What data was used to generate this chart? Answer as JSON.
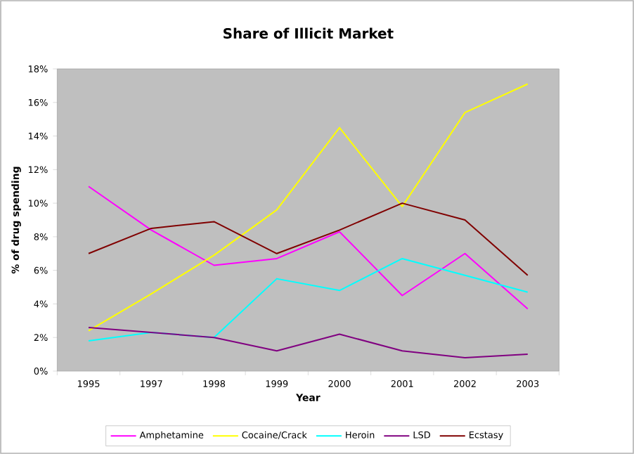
{
  "chart_data": {
    "type": "line",
    "title": "Share of Illicit Market",
    "xlabel": "Year",
    "ylabel": "% of drug spending",
    "categories": [
      "1995",
      "1997",
      "1998",
      "1999",
      "2000",
      "2001",
      "2002",
      "2003"
    ],
    "series": [
      {
        "name": "Amphetamine",
        "color": "#ff00ff",
        "values": [
          11.0,
          8.4,
          6.3,
          6.7,
          8.3,
          4.5,
          7.0,
          3.7
        ]
      },
      {
        "name": "Cocaine/Crack",
        "color": "#ffff00",
        "values": [
          2.4,
          4.6,
          6.9,
          9.6,
          14.5,
          9.8,
          15.4,
          17.1
        ]
      },
      {
        "name": "Heroin",
        "color": "#00ffff",
        "values": [
          1.8,
          2.3,
          2.0,
          5.5,
          4.8,
          6.7,
          5.7,
          4.7
        ]
      },
      {
        "name": "LSD",
        "color": "#800080",
        "values": [
          2.6,
          2.3,
          2.0,
          1.2,
          2.2,
          1.2,
          0.8,
          1.0
        ]
      },
      {
        "name": "Ecstasy",
        "color": "#800000",
        "values": [
          7.0,
          8.5,
          8.9,
          7.0,
          8.4,
          10.0,
          9.0,
          5.7
        ]
      }
    ],
    "ylim": [
      0,
      18
    ],
    "yticks": [
      {
        "value": 0,
        "label": "0%"
      },
      {
        "value": 2,
        "label": "2%"
      },
      {
        "value": 4,
        "label": "4%"
      },
      {
        "value": 6,
        "label": "6%"
      },
      {
        "value": 8,
        "label": "8%"
      },
      {
        "value": 10,
        "label": "10%"
      },
      {
        "value": 12,
        "label": "12%"
      },
      {
        "value": 14,
        "label": "14%"
      },
      {
        "value": 16,
        "label": "16%"
      },
      {
        "value": 18,
        "label": "18%"
      }
    ],
    "grid": false,
    "legend": "bottom",
    "line_style": "solid"
  }
}
